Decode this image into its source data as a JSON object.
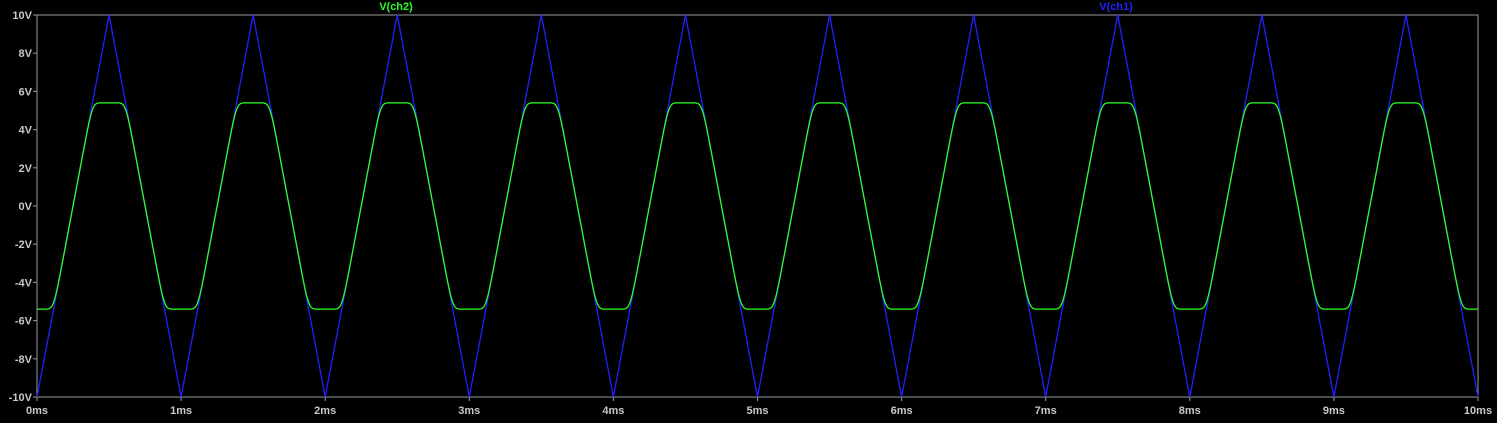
{
  "chart_data": {
    "type": "line",
    "title": "",
    "xlabel": "",
    "ylabel": "",
    "xlim": [
      0,
      10
    ],
    "ylim": [
      -10,
      10
    ],
    "x_unit": "ms",
    "y_unit": "V",
    "x_ticks": [
      "0ms",
      "1ms",
      "2ms",
      "3ms",
      "4ms",
      "5ms",
      "6ms",
      "7ms",
      "8ms",
      "9ms",
      "10ms"
    ],
    "y_ticks": [
      "10V",
      "8V",
      "6V",
      "4V",
      "2V",
      "0V",
      "-2V",
      "-4V",
      "-6V",
      "-8V",
      "-10V"
    ],
    "grid": false,
    "legend_placement": "top",
    "background": "#000000",
    "series": [
      {
        "name": "V(ch1)",
        "color": "#2020ff",
        "shape": "triangle",
        "amplitude": 10,
        "period_ms": 1,
        "peak_times_ms": [
          0.5,
          1.5,
          2.5,
          3.5,
          4.5,
          5.5,
          6.5,
          7.5,
          8.5,
          9.5
        ],
        "trough_times_ms": [
          0,
          1,
          2,
          3,
          4,
          5,
          6,
          7,
          8,
          9,
          10
        ]
      },
      {
        "name": "V(ch2)",
        "color": "#2aff2a",
        "shape": "soft-clipped triangle",
        "clip_level": 5.4,
        "follows": "V(ch1)"
      }
    ]
  }
}
